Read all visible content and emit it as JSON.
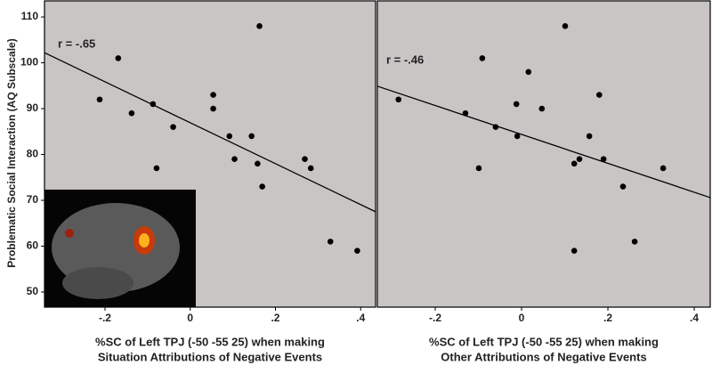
{
  "chart_data": [
    {
      "type": "scatter",
      "y_label": "Problematic Social Interaction (AQ Subscale)",
      "x_label": [
        "%SC of Left TPJ (-50 -55 25) when making",
        "Situation Attributions of Negative Events"
      ],
      "annotation": "r = -.65",
      "color": "#000000",
      "x": [
        -0.2125,
        -0.169,
        -0.1375,
        -0.0875,
        -0.079,
        -0.04,
        0.054,
        0.054,
        0.092,
        0.104,
        0.144,
        0.158,
        0.1625,
        0.169,
        0.269,
        0.283,
        0.329,
        0.392
      ],
      "values": [
        92,
        101,
        89,
        91,
        77,
        86,
        93,
        90,
        84,
        79,
        84,
        78,
        108,
        73,
        79,
        77,
        61,
        59
      ],
      "trendline": {
        "x": [
          -0.342,
          0.435
        ],
        "y": [
          102.2,
          67.5
        ]
      },
      "xlim": [
        -0.342,
        0.435
      ],
      "ylim": [
        46.7,
        113.7
      ],
      "xticks": [
        {
          "value": -0.2,
          "label": "-.2"
        },
        0,
        {
          "value": 0.2,
          "label": ".2"
        },
        {
          "value": 0.4,
          "label": ".4"
        }
      ],
      "yticks": [
        50,
        60,
        70,
        80,
        90,
        100,
        110
      ]
    },
    {
      "type": "scatter",
      "x_label": [
        "%SC of Left TPJ (-50 -55 25) when making",
        "Other Attributions of Negative Events"
      ],
      "annotation": "r = -.46",
      "color": "#000000",
      "x": [
        -0.285,
        -0.13,
        -0.091,
        -0.099,
        -0.06,
        -0.012,
        -0.01,
        0.016,
        0.047,
        0.101,
        0.122,
        0.122,
        0.134,
        0.157,
        0.18,
        0.19,
        0.235,
        0.262,
        0.328
      ],
      "values": [
        92,
        89,
        101,
        77,
        86,
        91,
        84,
        98,
        90,
        108,
        78,
        59,
        79,
        84,
        93,
        79,
        73,
        61,
        77
      ],
      "trendline": {
        "x": [
          -0.334,
          0.437
        ],
        "y": [
          94.9,
          70.6
        ]
      },
      "xlim": [
        -0.334,
        0.437
      ],
      "ylim": [
        46.7,
        113.7
      ],
      "xticks": [
        {
          "value": -0.2,
          "label": "-.2"
        },
        0,
        {
          "value": 0.2,
          "label": ".2"
        },
        {
          "value": 0.4,
          "label": ".4"
        }
      ],
      "yticks": []
    }
  ]
}
